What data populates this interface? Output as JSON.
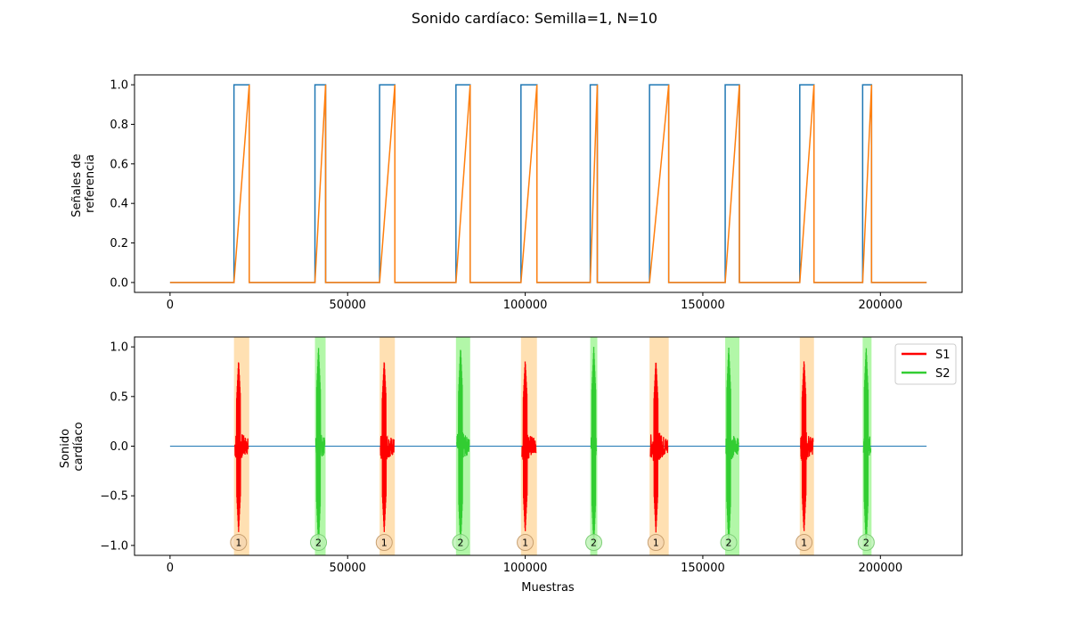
{
  "figure": {
    "title": "Sonido cardíaco: Semilla=1, N=10"
  },
  "chart_data": [
    {
      "type": "line",
      "name_ref": "top",
      "ylabel_lines": [
        "Señales de",
        "referencia"
      ],
      "xlabel": "",
      "xlim": [
        -10000,
        223000
      ],
      "ylim": [
        -0.05,
        1.05
      ],
      "xticks": [
        0,
        50000,
        100000,
        150000,
        200000
      ],
      "xtick_labels": [
        "0",
        "50000",
        "100000",
        "150000",
        "200000"
      ],
      "yticks": [
        0.0,
        0.2,
        0.4,
        0.6,
        0.8,
        1.0
      ],
      "ytick_labels": [
        "0.0",
        "0.2",
        "0.4",
        "0.6",
        "0.8",
        "1.0"
      ],
      "grid": false,
      "series": [
        {
          "color": "#1f77b4",
          "kind": "square",
          "x_end": 213000,
          "pulses": [
            [
              18000,
              22300
            ],
            [
              40800,
              43800
            ],
            [
              59000,
              63300
            ],
            [
              80500,
              84500
            ],
            [
              98800,
              103300
            ],
            [
              118300,
              120300
            ],
            [
              135000,
              140400
            ],
            [
              156300,
              160300
            ],
            [
              177300,
              181300
            ],
            [
              195000,
              197500
            ]
          ]
        },
        {
          "color": "#ff7f0e",
          "kind": "ramp",
          "x_end": 213000,
          "pulses": [
            [
              18000,
              22300
            ],
            [
              40800,
              43800
            ],
            [
              59000,
              63300
            ],
            [
              80500,
              84500
            ],
            [
              98800,
              103300
            ],
            [
              118300,
              120300
            ],
            [
              135000,
              140400
            ],
            [
              156300,
              160300
            ],
            [
              177300,
              181300
            ],
            [
              195000,
              197500
            ]
          ]
        }
      ]
    },
    {
      "type": "line",
      "name_ref": "bottom",
      "ylabel_lines": [
        "Sonido",
        "cardíaco"
      ],
      "xlabel": "Muestras",
      "xlim": [
        -10000,
        223000
      ],
      "ylim": [
        -1.1,
        1.1
      ],
      "xticks": [
        0,
        50000,
        100000,
        150000,
        200000
      ],
      "xtick_labels": [
        "0",
        "50000",
        "100000",
        "150000",
        "200000"
      ],
      "yticks": [
        -1.0,
        -0.5,
        0.0,
        0.5,
        1.0
      ],
      "ytick_labels": [
        "−1.0",
        "−0.5",
        "0.0",
        "0.5",
        "1.0"
      ],
      "grid": false,
      "baseline": {
        "x": [
          0,
          213000
        ],
        "y": 0,
        "color": "#1f77b4"
      },
      "legend": {
        "placement": "top-right",
        "entries": [
          {
            "label": "S1",
            "color": "#ff0000"
          },
          {
            "label": "S2",
            "color": "#32cd32"
          }
        ]
      },
      "span_colors": {
        "1": "#ffe0b2",
        "2": "#b2f7a8"
      },
      "marker_colors": {
        "1": "#f4d6b0",
        "2": "#b8f0b0"
      },
      "events": [
        {
          "label": "1",
          "start": 18000,
          "end": 22300,
          "peak_x": 19300,
          "amp": 0.87,
          "color": "#ff0000"
        },
        {
          "label": "2",
          "start": 40800,
          "end": 43800,
          "peak_x": 41800,
          "amp": 1.0,
          "color": "#32cd32"
        },
        {
          "label": "1",
          "start": 59000,
          "end": 63300,
          "peak_x": 60300,
          "amp": 0.87,
          "color": "#ff0000"
        },
        {
          "label": "2",
          "start": 80500,
          "end": 84500,
          "peak_x": 81800,
          "amp": 1.0,
          "color": "#32cd32"
        },
        {
          "label": "1",
          "start": 98800,
          "end": 103300,
          "peak_x": 100000,
          "amp": 0.87,
          "color": "#ff0000"
        },
        {
          "label": "2",
          "start": 118300,
          "end": 120300,
          "peak_x": 119300,
          "amp": 1.0,
          "color": "#32cd32"
        },
        {
          "label": "1",
          "start": 135000,
          "end": 140400,
          "peak_x": 136800,
          "amp": 0.87,
          "color": "#ff0000"
        },
        {
          "label": "2",
          "start": 156300,
          "end": 160300,
          "peak_x": 157300,
          "amp": 1.0,
          "color": "#32cd32"
        },
        {
          "label": "1",
          "start": 177300,
          "end": 181300,
          "peak_x": 178500,
          "amp": 0.87,
          "color": "#ff0000"
        },
        {
          "label": "2",
          "start": 195000,
          "end": 197500,
          "peak_x": 196000,
          "amp": 1.0,
          "color": "#32cd32"
        }
      ],
      "marker_y": -0.97
    }
  ]
}
